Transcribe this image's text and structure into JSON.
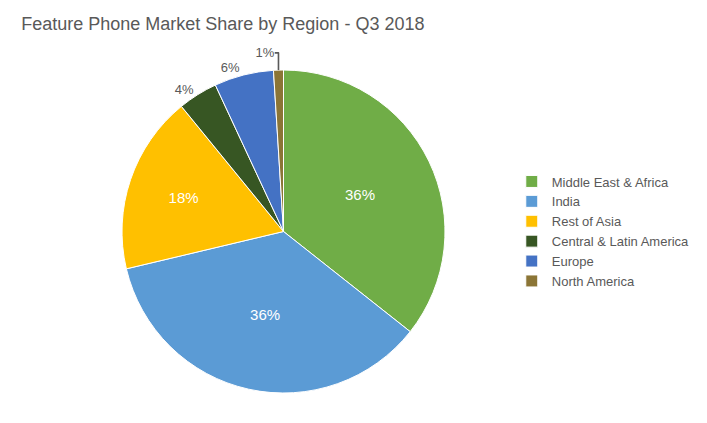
{
  "chart_data": {
    "type": "pie",
    "title": "Feature Phone Market Share by Region - Q3 2018",
    "categories": [
      "Middle East & Africa",
      "India",
      "Rest of Asia",
      "Central & Latin America",
      "Europe",
      "North America"
    ],
    "values": [
      36,
      36,
      18,
      4,
      6,
      1
    ],
    "value_labels": [
      "36%",
      "36%",
      "18%",
      "4%",
      "6%",
      "1%"
    ],
    "colors": [
      "#70ad47",
      "#5b9bd5",
      "#ffc000",
      "#375623",
      "#4472c4",
      "#8b7536"
    ],
    "data_labels": true,
    "legend": "right"
  }
}
